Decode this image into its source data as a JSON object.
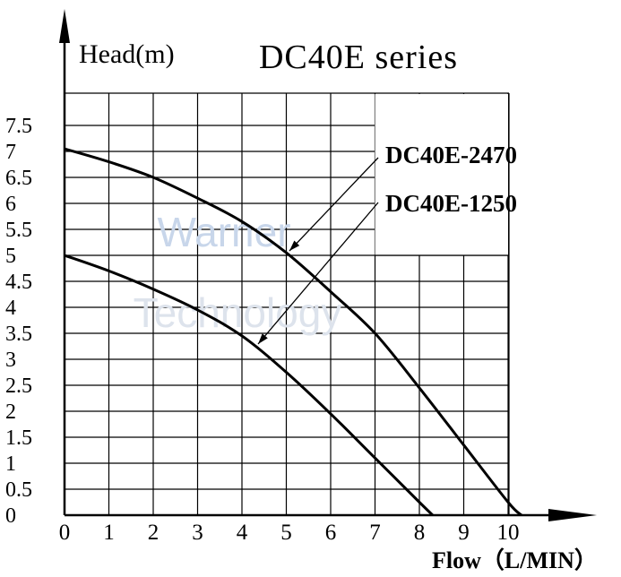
{
  "chart_data": {
    "type": "line",
    "title": "DC40E series",
    "ylabel": "Head(m)",
    "xlabel": "Flow（L/MIN）",
    "x_ticks": [
      "0",
      "1",
      "2",
      "3",
      "4",
      "5",
      "6",
      "7",
      "8",
      "9",
      "10"
    ],
    "y_ticks": [
      "0",
      "0.5",
      "1",
      "1.5",
      "2",
      "2.5",
      "3",
      "3.5",
      "4",
      "4.5",
      "5",
      "5.5",
      "6",
      "6.5",
      "7",
      "7.5"
    ],
    "xlim": [
      0,
      10
    ],
    "ylim": [
      0,
      7.5
    ],
    "grid": true,
    "watermark": [
      "Warner",
      "Technology"
    ],
    "series": [
      {
        "name": "DC40E-2470",
        "x": [
          0,
          1,
          2,
          3,
          4,
          5,
          6,
          7,
          8,
          9,
          10,
          10.3
        ],
        "y": [
          7.05,
          6.8,
          6.5,
          6.1,
          5.65,
          5.05,
          4.3,
          3.5,
          2.45,
          1.35,
          0.25,
          0
        ]
      },
      {
        "name": "DC40E-1250",
        "x": [
          0,
          1,
          2,
          3,
          4,
          5,
          6,
          7,
          8,
          8.3
        ],
        "y": [
          5.0,
          4.7,
          4.35,
          3.95,
          3.45,
          2.75,
          1.95,
          1.1,
          0.25,
          0
        ]
      }
    ]
  }
}
